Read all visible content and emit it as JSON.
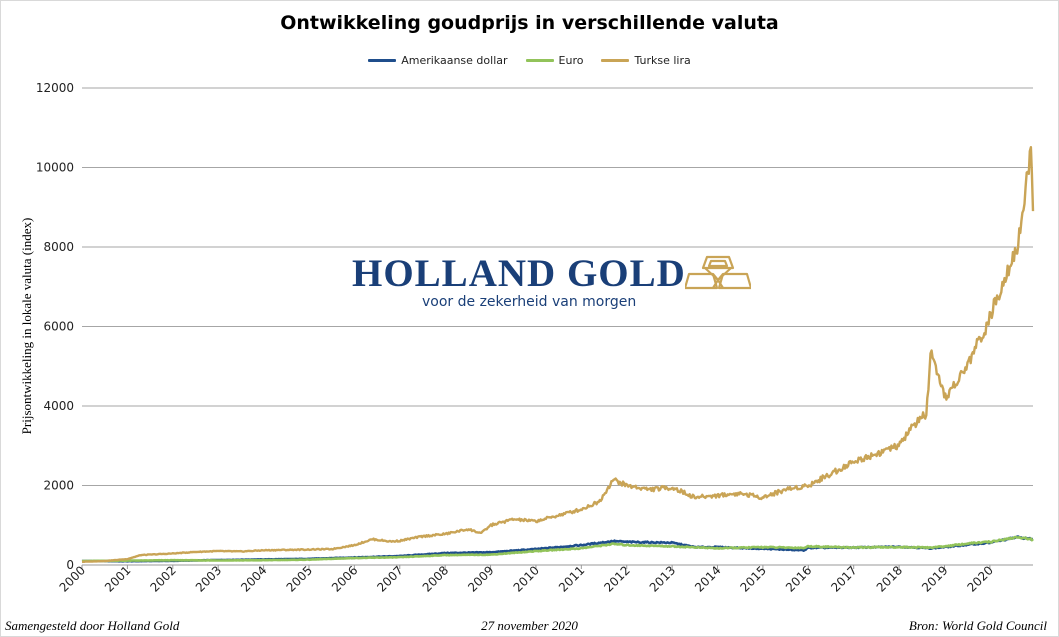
{
  "chart_data": {
    "type": "line",
    "title": "Ontwikkeling goudprijs in verschillende valuta",
    "xlabel": "",
    "ylabel": "Prijsontwikkeling in lokale valuta (index)",
    "ylim": [
      0,
      12000
    ],
    "xlim": [
      2000,
      2020.95
    ],
    "yticks": [
      "0",
      "2000",
      "4000",
      "6000",
      "8000",
      "10000",
      "12000"
    ],
    "xticks": [
      "2000",
      "2001",
      "2002",
      "2003",
      "2004",
      "2005",
      "2006",
      "2007",
      "2008",
      "2009",
      "2010",
      "2011",
      "2012",
      "2013",
      "2014",
      "2015",
      "2016",
      "2017",
      "2018",
      "2019",
      "2020"
    ],
    "grid": "horizontal",
    "legend_position": "top",
    "series": [
      {
        "name": "Amerikaanse dollar",
        "color": "#1f4e8c",
        "x": [
          2000,
          2001,
          2002,
          2003,
          2004,
          2005,
          2006,
          2007,
          2008,
          2009,
          2010,
          2011,
          2011.7,
          2012,
          2013,
          2013.5,
          2014,
          2015,
          2015.9,
          2016,
          2017,
          2018,
          2018.7,
          2019,
          2019.6,
          2020,
          2020.6,
          2020.95
        ],
        "y": [
          100,
          95,
          105,
          125,
          140,
          155,
          190,
          225,
          300,
          320,
          400,
          500,
          600,
          580,
          560,
          450,
          450,
          410,
          370,
          430,
          440,
          460,
          420,
          450,
          520,
          560,
          700,
          650
        ]
      },
      {
        "name": "Euro",
        "color": "#92c35a",
        "x": [
          2000,
          2001,
          2002,
          2003,
          2004,
          2005,
          2006,
          2007,
          2008,
          2009,
          2010,
          2011,
          2011.7,
          2012,
          2013,
          2014,
          2015,
          2015.9,
          2016,
          2017,
          2018,
          2018.7,
          2019,
          2019.6,
          2020,
          2020.6,
          2020.95
        ],
        "y": [
          100,
          110,
          120,
          115,
          120,
          135,
          175,
          195,
          250,
          260,
          350,
          420,
          530,
          500,
          470,
          420,
          450,
          430,
          470,
          440,
          450,
          440,
          470,
          550,
          580,
          700,
          640
        ]
      },
      {
        "name": "Turkse lira",
        "color": "#c9a456",
        "x": [
          2000,
          2000.5,
          2001,
          2001.3,
          2002,
          2002.5,
          2003,
          2003.5,
          2004,
          2004.5,
          2005,
          2005.5,
          2006,
          2006.4,
          2006.8,
          2007,
          2007.5,
          2008,
          2008.5,
          2008.8,
          2009,
          2009.5,
          2010,
          2010.5,
          2011,
          2011.4,
          2011.7,
          2012,
          2012.5,
          2013,
          2013.5,
          2014,
          2014.5,
          2015,
          2015.5,
          2016,
          2016.5,
          2017,
          2017.5,
          2018,
          2018.3,
          2018.6,
          2018.7,
          2019,
          2019.4,
          2019.7,
          2020,
          2020.3,
          2020.6,
          2020.8,
          2020.9,
          2020.95
        ],
        "y": [
          80,
          100,
          150,
          250,
          290,
          330,
          350,
          340,
          370,
          380,
          390,
          400,
          500,
          650,
          590,
          610,
          720,
          780,
          900,
          800,
          1000,
          1150,
          1100,
          1250,
          1400,
          1600,
          2150,
          2000,
          1900,
          1950,
          1700,
          1750,
          1800,
          1700,
          1900,
          2000,
          2300,
          2600,
          2800,
          3000,
          3500,
          3800,
          5300,
          4200,
          4800,
          5500,
          6200,
          7200,
          8000,
          9500,
          10500,
          9000
        ]
      }
    ]
  },
  "logo": {
    "name": "HOLLAND GOLD",
    "tagline": "voor de zekerheid van morgen"
  },
  "footer": {
    "left": "Samengesteld door Holland Gold",
    "center": "27 november 2020",
    "right": "Bron: World Gold Council"
  }
}
